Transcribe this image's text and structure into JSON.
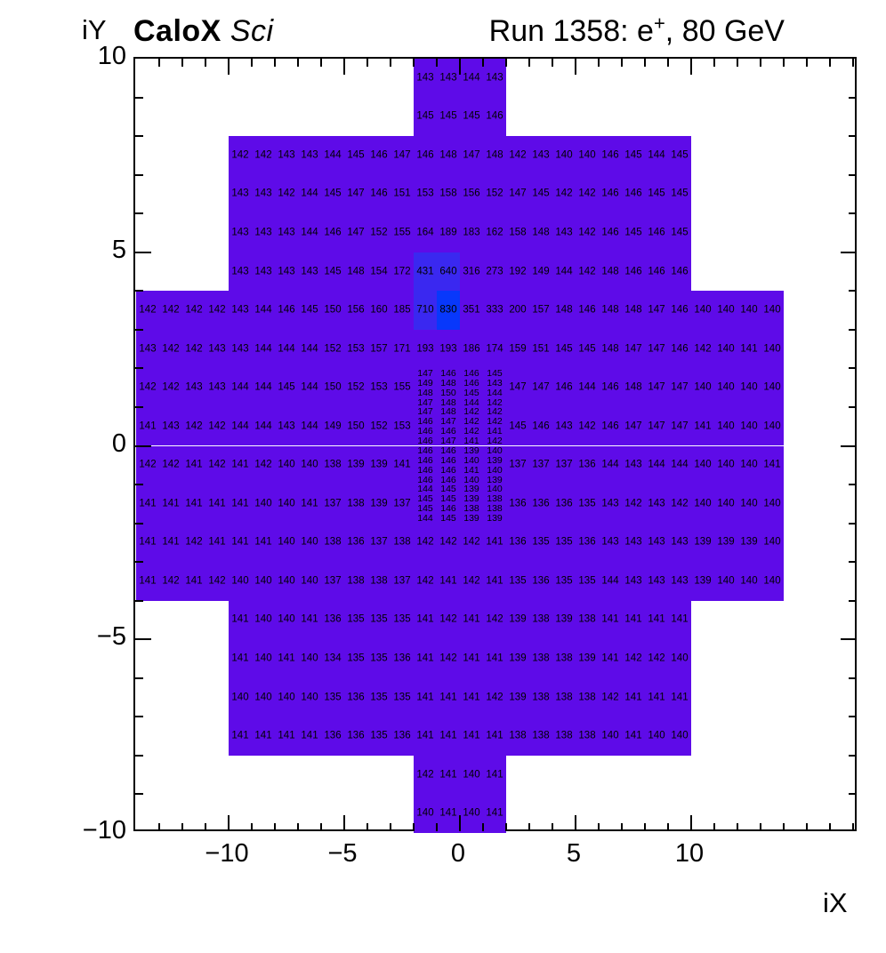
{
  "header": {
    "experiment": "CaloX",
    "experiment_qualifier": "Sci",
    "run_title_prefix": "Run 1358: e",
    "run_title_sup": "+",
    "run_title_suffix": ", 80 GeV"
  },
  "axes": {
    "x": {
      "title": "iX",
      "tick_values": [
        -10,
        -5,
        0,
        5,
        10
      ],
      "tick_labels": [
        "−10",
        "−5",
        "0",
        "5",
        "10"
      ],
      "min": -14,
      "max": 17.25,
      "minor_step": 1,
      "major_step": 5
    },
    "y": {
      "title": "iY",
      "tick_values": [
        10,
        5,
        0,
        -5,
        -10
      ],
      "tick_labels": [
        "10",
        "5",
        "0",
        "−5",
        "−10"
      ],
      "min": -10,
      "max": 10,
      "minor_step": 1,
      "major_step": 5
    }
  },
  "palette": {
    "base": "#5E0BE8",
    "mid": "#3A28F0",
    "hot": "#0838FB",
    "mid_threshold": 420,
    "hot_threshold": 800,
    "cell_text": "#000000",
    "frame": "#000000"
  },
  "chart_data": {
    "type": "heatmap",
    "title": "Run 1358: e+, 80 GeV",
    "detector_label": "CaloX Sci",
    "xlabel": "iX",
    "ylabel": "iY",
    "xlim": [
      -14,
      17.25
    ],
    "ylim": [
      -10,
      10
    ],
    "grid": false,
    "coarse_rows": [
      {
        "cy": 9.5,
        "x0": -2,
        "values": [
          143,
          143,
          144,
          143
        ]
      },
      {
        "cy": 8.5,
        "x0": -2,
        "values": [
          145,
          145,
          145,
          146
        ]
      },
      {
        "cy": 7.5,
        "x0": -10,
        "values": [
          142,
          142,
          143,
          143,
          144,
          145,
          146,
          147,
          146,
          148,
          147,
          148,
          142,
          143,
          140,
          140,
          146,
          145,
          144,
          145
        ]
      },
      {
        "cy": 6.5,
        "x0": -10,
        "values": [
          143,
          143,
          142,
          144,
          145,
          147,
          146,
          151,
          153,
          158,
          156,
          152,
          147,
          145,
          142,
          142,
          146,
          146,
          145,
          145
        ]
      },
      {
        "cy": 5.5,
        "x0": -10,
        "values": [
          143,
          143,
          143,
          144,
          146,
          147,
          152,
          155,
          164,
          189,
          183,
          162,
          158,
          148,
          143,
          142,
          146,
          145,
          146,
          145
        ]
      },
      {
        "cy": 4.5,
        "x0": -10,
        "values": [
          143,
          143,
          143,
          143,
          145,
          148,
          154,
          172,
          431,
          640,
          316,
          273,
          192,
          149,
          144,
          142,
          148,
          146,
          146,
          146
        ]
      },
      {
        "cy": 3.5,
        "x0": -14,
        "values": [
          142,
          142,
          142,
          142,
          143,
          144,
          146,
          145,
          150,
          156,
          160,
          185,
          710,
          830,
          351,
          333,
          200,
          157,
          148,
          146,
          148,
          148,
          147,
          146,
          140,
          140,
          140,
          140
        ]
      },
      {
        "cy": 2.5,
        "x0": -14,
        "values": [
          143,
          142,
          142,
          143,
          143,
          144,
          144,
          144,
          152,
          153,
          157,
          171,
          193,
          193,
          186,
          174,
          159,
          151,
          145,
          145,
          148,
          147,
          147,
          146,
          142,
          140,
          141,
          140
        ]
      },
      {
        "cy": 1.5,
        "x0": -14,
        "values": [
          142,
          142,
          143,
          143,
          144,
          144,
          145,
          144,
          150,
          152,
          153,
          155
        ]
      },
      {
        "cy": 1.5,
        "x0": 2,
        "values": [
          147,
          147,
          146,
          144,
          146,
          148,
          147,
          147,
          140,
          140,
          140,
          140
        ]
      },
      {
        "cy": 0.5,
        "x0": -14,
        "values": [
          141,
          143,
          142,
          142,
          144,
          144,
          143,
          144,
          149,
          150,
          152,
          153
        ]
      },
      {
        "cy": 0.5,
        "x0": 2,
        "values": [
          145,
          146,
          143,
          142,
          146,
          147,
          147,
          147,
          141,
          140,
          140,
          140
        ]
      },
      {
        "cy": -0.5,
        "x0": -14,
        "values": [
          142,
          142,
          141,
          142,
          141,
          142,
          140,
          140,
          138,
          139,
          139,
          141
        ]
      },
      {
        "cy": -0.5,
        "x0": 2,
        "values": [
          137,
          137,
          137,
          136,
          144,
          143,
          144,
          144,
          140,
          140,
          140,
          141
        ]
      },
      {
        "cy": -1.5,
        "x0": -14,
        "values": [
          141,
          141,
          141,
          141,
          141,
          140,
          140,
          141,
          137,
          138,
          139,
          137
        ]
      },
      {
        "cy": -1.5,
        "x0": 2,
        "values": [
          136,
          136,
          136,
          135,
          143,
          142,
          143,
          142,
          140,
          140,
          140,
          140
        ]
      },
      {
        "cy": -2.5,
        "x0": -14,
        "values": [
          141,
          141,
          142,
          141,
          141,
          141,
          140,
          140,
          138,
          136,
          137,
          138,
          142,
          142,
          142,
          141,
          136,
          135,
          135,
          136,
          143,
          143,
          143,
          143,
          139,
          139,
          139,
          140
        ]
      },
      {
        "cy": -3.5,
        "x0": -14,
        "values": [
          141,
          142,
          141,
          142,
          140,
          140,
          140,
          140,
          137,
          138,
          138,
          137,
          142,
          141,
          142,
          141,
          135,
          136,
          135,
          135,
          144,
          143,
          143,
          143,
          139,
          140,
          140,
          140
        ]
      },
      {
        "cy": -4.5,
        "x0": -10,
        "values": [
          141,
          140,
          140,
          141,
          136,
          135,
          135,
          135,
          141,
          142,
          141,
          142,
          139,
          138,
          139,
          138,
          141,
          141,
          141,
          141
        ]
      },
      {
        "cy": -5.5,
        "x0": -10,
        "values": [
          141,
          140,
          141,
          140,
          134,
          135,
          135,
          136,
          141,
          142,
          141,
          141,
          139,
          138,
          138,
          139,
          141,
          142,
          142,
          140
        ]
      },
      {
        "cy": -6.5,
        "x0": -10,
        "values": [
          140,
          140,
          140,
          140,
          135,
          136,
          135,
          135,
          141,
          141,
          141,
          142,
          139,
          138,
          138,
          138,
          142,
          141,
          141,
          141
        ]
      },
      {
        "cy": -7.5,
        "x0": -10,
        "values": [
          141,
          141,
          141,
          141,
          136,
          136,
          135,
          136,
          141,
          141,
          141,
          141,
          138,
          138,
          138,
          138,
          140,
          141,
          140,
          140
        ]
      },
      {
        "cy": -8.5,
        "x0": -2,
        "values": [
          142,
          141,
          140,
          141
        ]
      },
      {
        "cy": -9.5,
        "x0": -2,
        "values": [
          140,
          141,
          140,
          141
        ]
      }
    ],
    "fine_block": {
      "x0": -2,
      "col_width": 1,
      "y_top": 2.0,
      "row_height": 0.25,
      "rows": [
        [
          147,
          146,
          146,
          145
        ],
        [
          149,
          148,
          146,
          143
        ],
        [
          148,
          150,
          145,
          144
        ],
        [
          147,
          148,
          144,
          142
        ],
        [
          147,
          148,
          142,
          142
        ],
        [
          146,
          147,
          142,
          142
        ],
        [
          146,
          146,
          142,
          141
        ],
        [
          146,
          147,
          141,
          142
        ],
        [
          146,
          146,
          139,
          140
        ],
        [
          146,
          146,
          140,
          139
        ],
        [
          146,
          146,
          141,
          140
        ],
        [
          146,
          146,
          140,
          139
        ],
        [
          144,
          145,
          139,
          140
        ],
        [
          145,
          145,
          139,
          138
        ],
        [
          145,
          146,
          138,
          138
        ],
        [
          144,
          145,
          139,
          139
        ]
      ]
    }
  }
}
